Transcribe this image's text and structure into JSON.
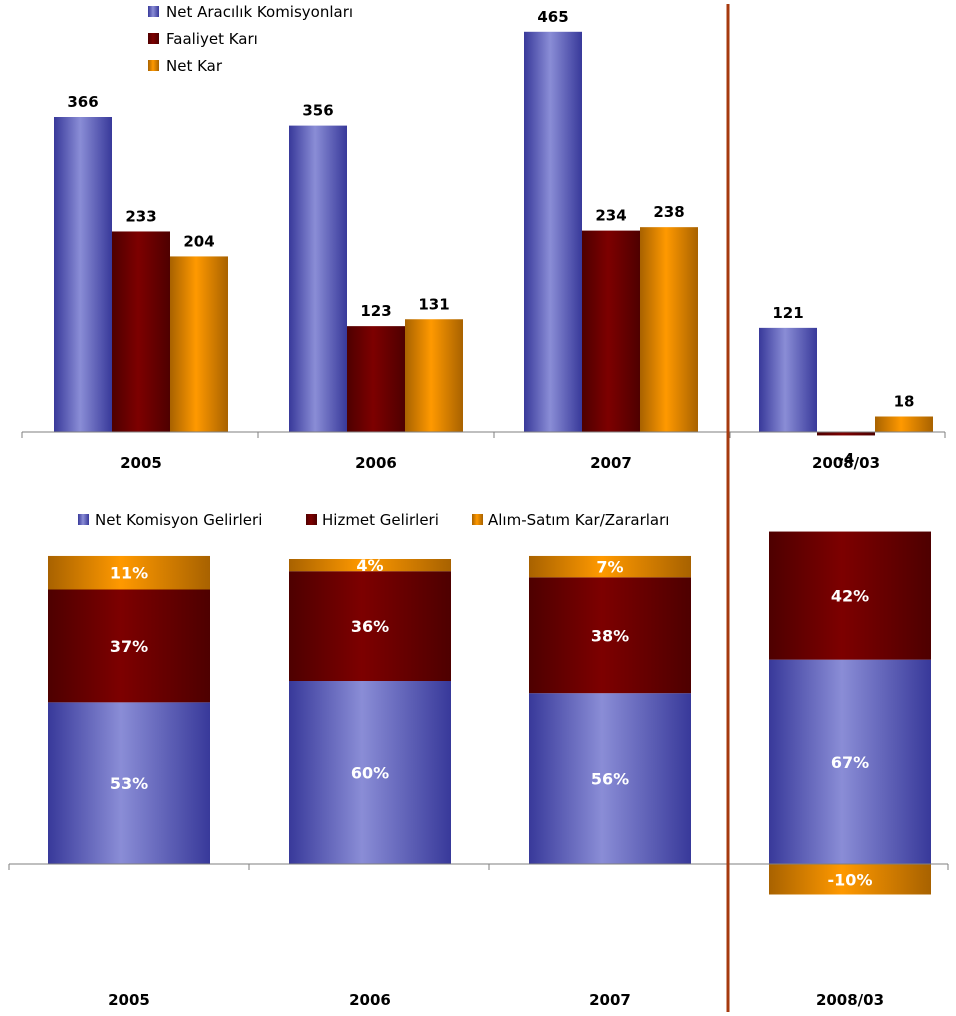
{
  "colors": {
    "blue": "#6f72c2",
    "blue_light": "#8a8dd6",
    "blue_dark": "#38399a",
    "maroon": "#7d0000",
    "maroon_dark": "#4e0000",
    "orange": "#ff9900",
    "orange_dark": "#a86200",
    "divider": "#a63a0f",
    "axis": "#7f7f7f"
  },
  "chart_data": [
    {
      "type": "bar",
      "categories": [
        "2005",
        "2006",
        "2007",
        "2008/03"
      ],
      "series": [
        {
          "name": "Net Aracılık Komisyonları",
          "color": "blue",
          "values": [
            366,
            356,
            465,
            121
          ],
          "labels": [
            "366",
            "356",
            "465",
            "121"
          ]
        },
        {
          "name": "Faaliyet Karı",
          "color": "maroon",
          "values": [
            233,
            123,
            234,
            -4
          ],
          "labels": [
            "233",
            "123",
            "234",
            "-4"
          ]
        },
        {
          "name": "Net Kar",
          "color": "orange",
          "values": [
            204,
            131,
            238,
            18
          ],
          "labels": [
            "204",
            "131",
            "238",
            "18"
          ]
        }
      ],
      "legend_position": "top-left",
      "title": "",
      "xlabel": "",
      "ylabel": ""
    },
    {
      "type": "bar",
      "stacked": true,
      "categories": [
        "2005",
        "2006",
        "2007",
        "2008/03"
      ],
      "series": [
        {
          "name": "Net Komisyon Gelirleri",
          "color": "blue",
          "values": [
            53,
            60,
            56,
            67
          ],
          "labels": [
            "53%",
            "60%",
            "56%",
            "67%"
          ]
        },
        {
          "name": "Hizmet Gelirleri",
          "color": "maroon",
          "values": [
            37,
            36,
            38,
            42
          ],
          "labels": [
            "37%",
            "36%",
            "38%",
            "42%"
          ]
        },
        {
          "name": "Alım-Satım Kar/Zararları",
          "color": "orange",
          "values": [
            11,
            4,
            7,
            -10
          ],
          "labels": [
            "11%",
            "4%",
            "7%",
            "-10%"
          ]
        }
      ],
      "legend_position": "top",
      "title": "",
      "xlabel": "",
      "ylabel": ""
    }
  ]
}
